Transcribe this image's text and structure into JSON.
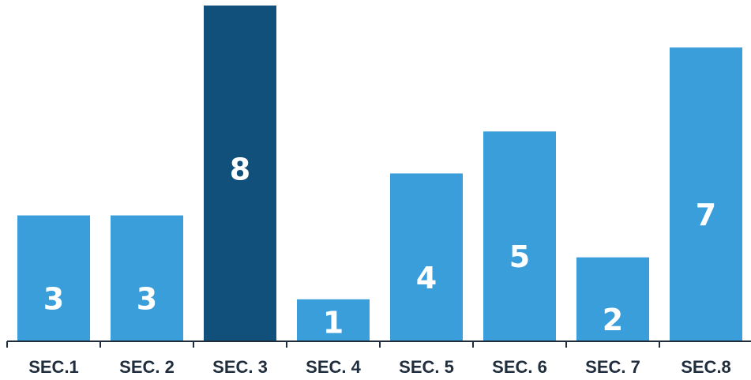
{
  "chart_data": {
    "type": "bar",
    "categories": [
      "SEC.1",
      "SEC. 2",
      "SEC. 3",
      "SEC. 4",
      "SEC. 5",
      "SEC. 6",
      "SEC. 7",
      "SEC.8"
    ],
    "values": [
      3,
      3,
      8,
      1,
      4,
      5,
      2,
      7
    ],
    "data_labels": [
      "3",
      "3",
      "8",
      "1",
      "4",
      "5",
      "2",
      "7"
    ],
    "highlight_index": 2,
    "ylim": [
      0,
      8
    ],
    "title": "",
    "xlabel": "",
    "ylabel": "",
    "grid": false,
    "colors": {
      "bar": "#3a9edb",
      "highlight": "#11507a",
      "axis": "#1f2d3d",
      "label": "#1f2d3d",
      "value": "#ffffff"
    }
  }
}
